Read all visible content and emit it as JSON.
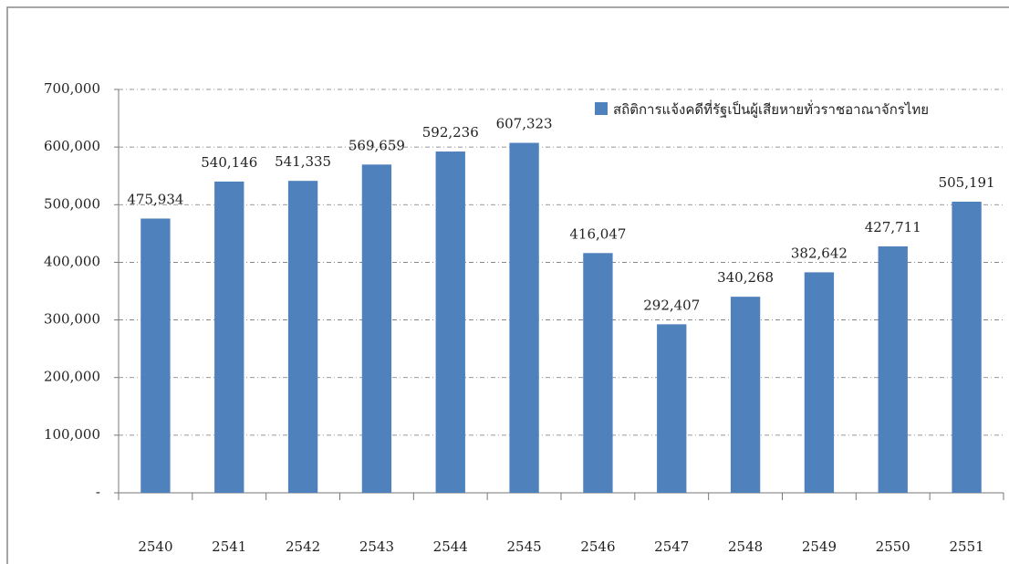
{
  "chart_data": {
    "type": "bar",
    "categories": [
      "2540",
      "2541",
      "2542",
      "2543",
      "2544",
      "2545",
      "2546",
      "2547",
      "2548",
      "2549",
      "2550",
      "2551"
    ],
    "series": [
      {
        "name": "สถิติการแจ้งคดีที่รัฐเป็นผู้เสียหายทั่วราชอาณาจักรไทย",
        "color": "#4f81bd",
        "values": [
          475934,
          540146,
          541335,
          569659,
          592236,
          607323,
          416047,
          292407,
          340268,
          382642,
          427711,
          505191
        ],
        "value_labels": [
          "475,934",
          "540,146",
          "541,335",
          "569,659",
          "592,236",
          "607,323",
          "416,047",
          "292,407",
          "340,268",
          "382,642",
          "427,711",
          "505,191"
        ]
      }
    ],
    "ylim": [
      0,
      700000
    ],
    "yticks": [
      {
        "value": 0,
        "label": "-"
      },
      {
        "value": 100000,
        "label": "100,000"
      },
      {
        "value": 200000,
        "label": "200,000"
      },
      {
        "value": 300000,
        "label": "300,000"
      },
      {
        "value": 400000,
        "label": "400,000"
      },
      {
        "value": 500000,
        "label": "500,000"
      },
      {
        "value": 600000,
        "label": "600,000"
      },
      {
        "value": 700000,
        "label": "700,000"
      }
    ],
    "grid": true,
    "legend": "top-right"
  }
}
